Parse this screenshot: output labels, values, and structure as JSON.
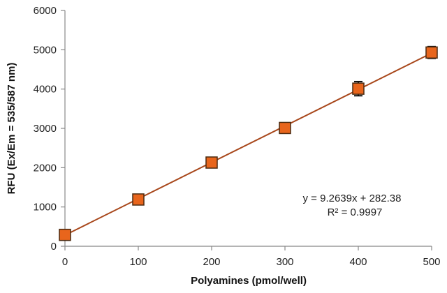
{
  "chart_data": {
    "type": "scatter",
    "title": "",
    "xlabel": "Polyamines (pmol/well)",
    "ylabel": "RFU (Ex/Em = 535/587 nm)",
    "xlim": [
      0,
      500
    ],
    "ylim": [
      0,
      6000
    ],
    "x_ticks": [
      "0",
      "100",
      "200",
      "300",
      "400",
      "500"
    ],
    "y_ticks": [
      "0",
      "1000",
      "2000",
      "3000",
      "4000",
      "5000",
      "6000"
    ],
    "grid": false,
    "legend": "none",
    "series": [
      {
        "x": [
          0,
          100,
          200,
          300,
          400,
          500
        ],
        "y": [
          290,
          1190,
          2130,
          3010,
          4010,
          4930
        ],
        "error": [
          0,
          0,
          0,
          0,
          180,
          150
        ]
      }
    ],
    "trendline": {
      "slope": 9.2639,
      "intercept": 282.38
    },
    "annotations": {
      "equation": "y = 9.2639x + 282.38",
      "r_squared": "R² = 0.9997"
    },
    "colors": {
      "marker_fill": "#E8651C",
      "marker_stroke": "#4A2A10",
      "trendline": "#A8471B",
      "axis": "#888888",
      "error_bar": "#111111"
    }
  }
}
